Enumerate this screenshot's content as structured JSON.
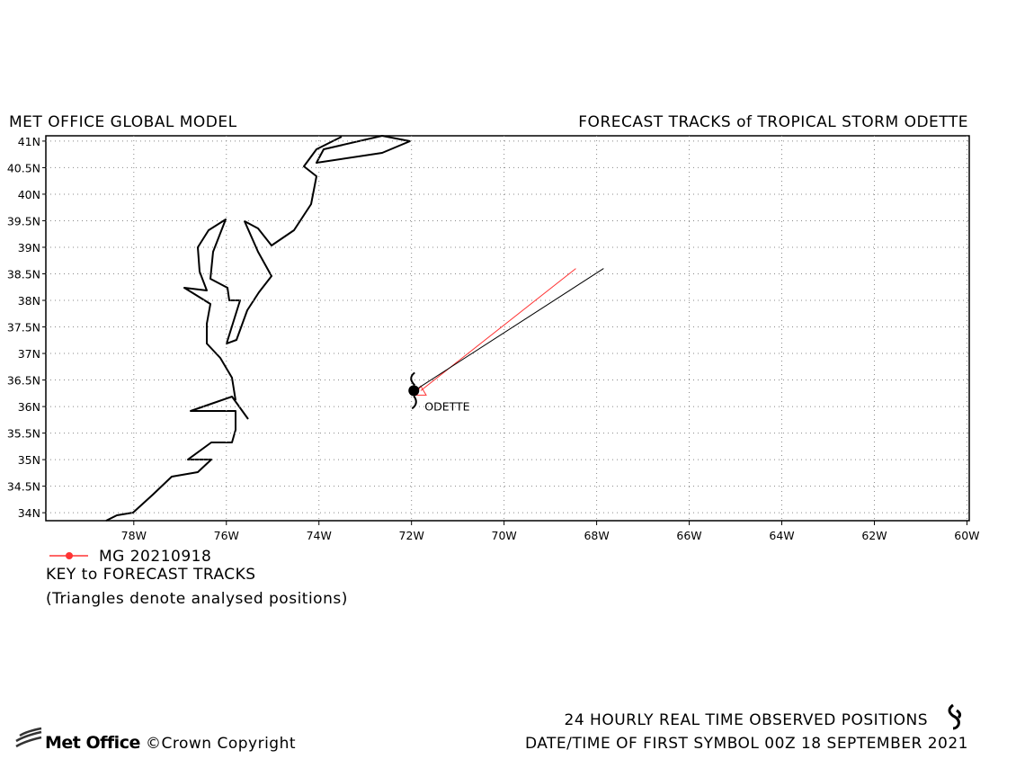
{
  "chart_data": {
    "type": "track-map",
    "title_left": "MET OFFICE GLOBAL MODEL",
    "title_right": "FORECAST TRACKS of TROPICAL STORM ODETTE",
    "xlim": [
      -79.9,
      -59.95
    ],
    "ylim": [
      33.85,
      41.1
    ],
    "xticks": [
      {
        "value": -78,
        "label": "78W"
      },
      {
        "value": -76,
        "label": "76W"
      },
      {
        "value": -74,
        "label": "74W"
      },
      {
        "value": -72,
        "label": "72W"
      },
      {
        "value": -70,
        "label": "70W"
      },
      {
        "value": -68,
        "label": "68W"
      },
      {
        "value": -66,
        "label": "66W"
      },
      {
        "value": -64,
        "label": "64W"
      },
      {
        "value": -62,
        "label": "62W"
      },
      {
        "value": -60,
        "label": "60W"
      }
    ],
    "yticks": [
      {
        "value": 34,
        "label": "34N"
      },
      {
        "value": 34.5,
        "label": "34.5N"
      },
      {
        "value": 35,
        "label": "35N"
      },
      {
        "value": 35.5,
        "label": "35.5N"
      },
      {
        "value": 36,
        "label": "36N"
      },
      {
        "value": 36.5,
        "label": "36.5N"
      },
      {
        "value": 37,
        "label": "37N"
      },
      {
        "value": 37.5,
        "label": "37.5N"
      },
      {
        "value": 38,
        "label": "38N"
      },
      {
        "value": 38.5,
        "label": "38.5N"
      },
      {
        "value": 39,
        "label": "39N"
      },
      {
        "value": 39.5,
        "label": "39.5N"
      },
      {
        "value": 40,
        "label": "40N"
      },
      {
        "value": 40.5,
        "label": "40.5N"
      },
      {
        "value": 41,
        "label": "41N"
      }
    ],
    "grid": true,
    "series": [
      {
        "name": "MG 20210918",
        "color": "#ff3333",
        "x": [
          -71.8,
          -68.45
        ],
        "y": [
          36.3,
          38.6
        ]
      },
      {
        "color": "#000000",
        "x": [
          -71.85,
          -67.85
        ],
        "y": [
          36.35,
          38.6
        ]
      }
    ],
    "storm": {
      "name": "ODETTE",
      "x": -71.95,
      "y": 36.3
    },
    "key_title": "KEY to FORECAST TRACKS",
    "key_note": "(Triangles denote analysed positions)",
    "footer_observed": "24 HOURLY REAL TIME OBSERVED POSITIONS",
    "footer_date": "DATE/TIME OF FIRST SYMBOL 00Z 18 SEPTEMBER 2021",
    "logo": "Met Office",
    "copyright": "©Crown Copyright"
  }
}
